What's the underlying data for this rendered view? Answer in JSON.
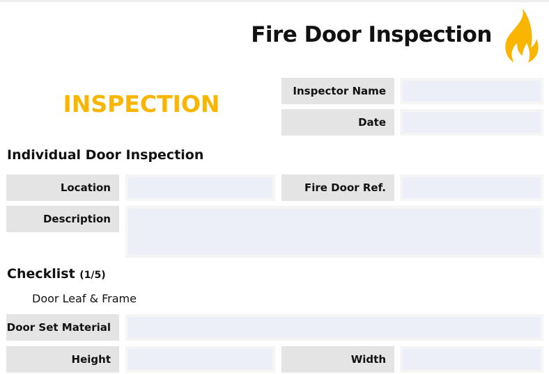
{
  "header": {
    "title": "Fire Door Inspection",
    "icon": "flame-icon",
    "accent_color": "#f9b500"
  },
  "section_label": "INSPECTION",
  "inspector": {
    "name_label": "Inspector Name",
    "name_value": "",
    "date_label": "Date",
    "date_value": ""
  },
  "door": {
    "heading": "Individual Door Inspection",
    "location_label": "Location",
    "location_value": "",
    "ref_label": "Fire Door Ref.",
    "ref_value": "",
    "description_label": "Description",
    "description_value": ""
  },
  "checklist": {
    "heading": "Checklist",
    "progress": "(1/5)",
    "subheading": "Door Leaf & Frame",
    "material_label": "Door Set Material",
    "material_value": "",
    "height_label": "Height",
    "height_value": "",
    "width_label": "Width",
    "width_value": ""
  }
}
